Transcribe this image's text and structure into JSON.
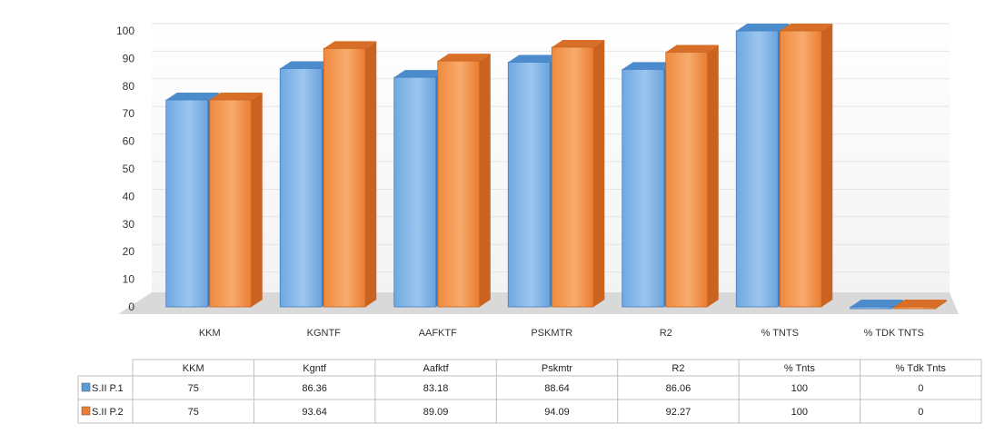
{
  "chart_data": {
    "type": "bar",
    "categories": [
      "KKM",
      "KGNTF",
      "AAFKTF",
      "PSKMTR",
      "R2",
      "% TNTS",
      "% TDK TNTS"
    ],
    "table_headers": [
      "KKM",
      "Kgntf",
      "Aafktf",
      "Pskmtr",
      "R2",
      "% Tnts",
      "% Tdk Tnts"
    ],
    "series": [
      {
        "name": "S.II P.1",
        "values": [
          75,
          86.36,
          83.18,
          88.64,
          86.06,
          100,
          0
        ],
        "value_labels": [
          "75",
          "86.36",
          "83.18",
          "88.64",
          "86.06",
          "100",
          "0"
        ],
        "color": "#5b9bd5"
      },
      {
        "name": "S.II P.2",
        "values": [
          75,
          93.64,
          89.09,
          94.09,
          92.27,
          100,
          0
        ],
        "value_labels": [
          "75",
          "93.64",
          "89.09",
          "94.09",
          "92.27",
          "100",
          "0"
        ],
        "color": "#ed7d31"
      }
    ],
    "yticks": [
      "0",
      "10",
      "20",
      "30",
      "40",
      "50",
      "60",
      "70",
      "80",
      "90",
      "100"
    ],
    "ylim": [
      0,
      100
    ],
    "grid": true,
    "legend": "data-table"
  }
}
